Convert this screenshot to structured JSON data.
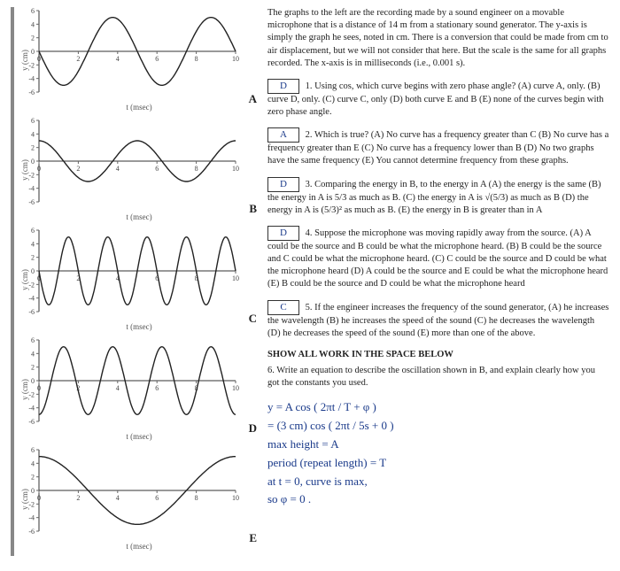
{
  "intro": "The graphs to the left are the recording made by a sound engineer on a movable microphone that is a distance of 14 m from a stationary sound generator.  The y-axis is simply the graph he sees, noted in cm.  There is a conversion that could be made from cm to air displacement, but we will not consider that here.  But the scale is the same for all graphs recorded.   The x-axis is in milliseconds (i.e., 0.001 s).",
  "ylabel": "y (cm)",
  "xlabel": "t (msec)",
  "questions": {
    "q1": {
      "ans": "D",
      "num": "1.",
      "text": "Using cos, which curve begins with zero phase angle? (A) curve A, only.  (B)  curve D, only.  (C)  curve C, only  (D)  both curve E and B   (E)  none of the curves begin with zero phase angle."
    },
    "q2": {
      "ans": "A",
      "num": "2.",
      "text": "Which is true? (A) No curve has a frequency greater than C  (B) No curve has a frequency greater than E  (C)  No curve has a frequency lower than B (D) No two graphs have the same frequency  (E)  You cannot determine frequency from these graphs."
    },
    "q3": {
      "ans": "D",
      "num": "3.",
      "text": "Comparing the energy in B, to the energy in A  (A) the energy is the same  (B) the energy in A is 5/3 as much as B.   (C) the energy in A is √(5/3) as much as B  (D)  the energy in A is (5/3)² as much as B.  (E) the energy in B is greater than in A"
    },
    "q4": {
      "ans": "D",
      "num": "4.",
      "text": "Suppose the microphone was moving rapidly away from the source. (A)  A could be the source and B could be what the microphone heard.  (B) B could be the source and C could be what the microphone heard. (C)  C could be the source and D could be what the microphone heard  (D)  A could be the source and E could be what the microphone heard  (E)  B could be the source and D could be what the microphone heard"
    },
    "q5": {
      "ans": "C",
      "num": "5.",
      "text": "If the engineer increases the frequency of the sound generator, (A) he increases the wavelength  (B) he increases the speed of the sound  (C)  he decreases the wavelength  (D) he decreases the speed of the sound (E) more than one of the above."
    }
  },
  "showwork": "SHOW ALL WORK IN THE SPACE BELOW",
  "q6": "6.    Write an equation to describe the oscillation shown in B, and explain clearly how you got the constants you used.",
  "hand": {
    "l1": "y = A cos ( 2πt / T  +  φ )",
    "l2": "= (3 cm)  cos  ( 2πt / 5s  + 0 )",
    "l3": "max  height  =  A",
    "l4": "period  (repeat  length)  =  T",
    "l5": "at  t = 0,   curve  is  max,",
    "l6": "so    φ  =  0 ."
  },
  "graphs": {
    "yTicks": [
      "6",
      "4",
      "2",
      "0",
      "-2",
      "-4",
      "-6"
    ],
    "xTicks": [
      "0",
      "2",
      "4",
      "6",
      "8",
      "10"
    ],
    "axisColor": "#333",
    "curveColor": "#222",
    "A": {
      "amplitude": 5,
      "period": 5,
      "phase": 1.5708,
      "letter": "A"
    },
    "B": {
      "amplitude": 3,
      "period": 5,
      "phase": 0,
      "letter": "B"
    },
    "C": {
      "amplitude": 5,
      "period": 2,
      "phase": 1.5708,
      "letter": "C"
    },
    "D": {
      "amplitude": 5,
      "period": 2.5,
      "phase": 3.1416,
      "letter": "D"
    },
    "E": {
      "amplitude": 5,
      "period": 10,
      "phase": 0,
      "letter": "E"
    }
  }
}
